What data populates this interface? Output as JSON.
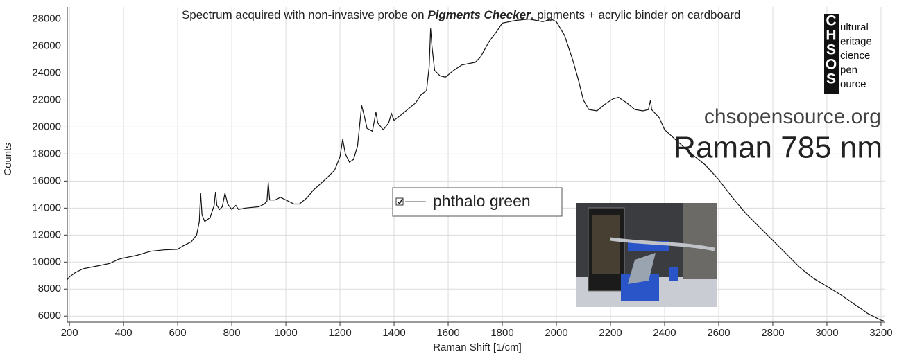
{
  "chart_data": {
    "type": "line",
    "title_parts": [
      "Spectrum acquired with non-invasive probe on ",
      "Pigments Checker",
      ", pigments + acrylic binder on cardboard"
    ],
    "x_label": "Raman Shift [1/cm]",
    "y_label": "Counts",
    "website": "chsopensource.org",
    "method": "Raman 785 nm",
    "logo": {
      "initials": [
        "C",
        "H",
        "S",
        "O",
        "S"
      ],
      "words": [
        "ultural",
        "eritage",
        "cience",
        "pen",
        "ource"
      ]
    },
    "x": [
      192,
      200,
      220,
      250,
      300,
      350,
      380,
      400,
      450,
      500,
      550,
      600,
      620,
      650,
      670,
      680,
      685,
      690,
      700,
      720,
      735,
      740,
      745,
      755,
      765,
      775,
      785,
      800,
      815,
      825,
      850,
      900,
      920,
      930,
      935,
      940,
      960,
      980,
      1000,
      1030,
      1050,
      1080,
      1100,
      1150,
      1180,
      1200,
      1210,
      1220,
      1235,
      1250,
      1265,
      1280,
      1290,
      1300,
      1320,
      1333,
      1340,
      1360,
      1380,
      1390,
      1400,
      1420,
      1450,
      1480,
      1500,
      1520,
      1530,
      1535,
      1540,
      1550,
      1570,
      1590,
      1620,
      1650,
      1700,
      1720,
      1750,
      1780,
      1800,
      1850,
      1900,
      1950,
      1980,
      2000,
      2030,
      2060,
      2080,
      2100,
      2120,
      2150,
      2180,
      2210,
      2230,
      2260,
      2290,
      2320,
      2340,
      2348,
      2352,
      2380,
      2400,
      2450,
      2500,
      2550,
      2600,
      2650,
      2700,
      2750,
      2800,
      2850,
      2900,
      2950,
      3000,
      3050,
      3100,
      3130,
      3150,
      3200,
      3210
    ],
    "series": [
      {
        "name": "phthalo green",
        "color": "#111111",
        "values": [
          8700,
          8900,
          9200,
          9500,
          9700,
          9900,
          10200,
          10300,
          10500,
          10800,
          10900,
          10950,
          11200,
          11500,
          12000,
          13000,
          15100,
          13500,
          13000,
          13300,
          14200,
          15200,
          14200,
          13900,
          14100,
          15100,
          14300,
          13900,
          14200,
          13900,
          14000,
          14100,
          14300,
          14500,
          15900,
          14600,
          14600,
          14800,
          14600,
          14300,
          14300,
          14800,
          15300,
          16200,
          16800,
          17800,
          19100,
          18000,
          17400,
          17600,
          18600,
          21600,
          20800,
          19900,
          19700,
          21100,
          20300,
          19800,
          20300,
          21000,
          20500,
          20800,
          21300,
          21800,
          22400,
          22700,
          24500,
          27300,
          26000,
          24200,
          23800,
          23700,
          24200,
          24600,
          24800,
          25200,
          26300,
          27100,
          27700,
          27900,
          28000,
          27800,
          28000,
          27800,
          26800,
          25000,
          23600,
          22000,
          21300,
          21200,
          21700,
          22100,
          22200,
          21800,
          21300,
          21200,
          21300,
          22000,
          21300,
          20700,
          19800,
          18900,
          18000,
          17200,
          16100,
          14800,
          13600,
          12600,
          11600,
          10600,
          9600,
          8800,
          8200,
          7600,
          6900,
          6500,
          6200,
          5700,
          5650
        ]
      }
    ],
    "xlim": [
      192,
      3213
    ],
    "ylim": [
      5550,
      28900
    ],
    "xticks": [
      200,
      400,
      600,
      800,
      1000,
      1200,
      1400,
      1600,
      1800,
      2000,
      2200,
      2400,
      2600,
      2800,
      3000,
      3200
    ],
    "yticks": [
      6000,
      8000,
      10000,
      12000,
      14000,
      16000,
      18000,
      20000,
      22000,
      24000,
      26000,
      28000
    ],
    "grid": true,
    "legend": "center"
  }
}
